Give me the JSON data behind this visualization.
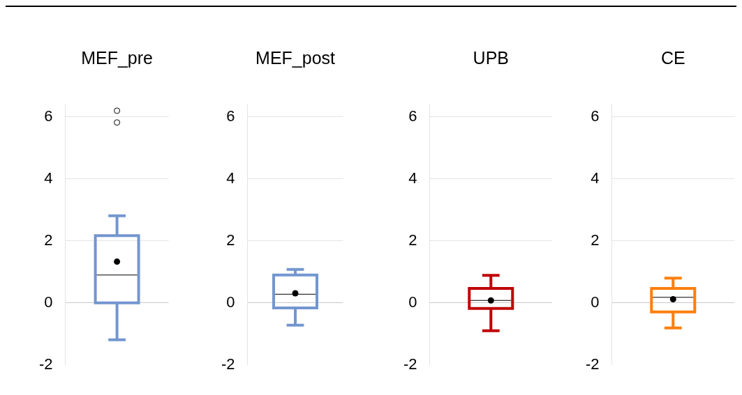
{
  "chart_data": [
    {
      "type": "box",
      "categories": [
        "MEF_pre"
      ],
      "color": "#7396cf",
      "ylim": [
        -2,
        6.4
      ],
      "yticks": [
        -2,
        0,
        2,
        4,
        6
      ],
      "grid": "y",
      "legend": false,
      "boxes": [
        {
          "low": -1.19,
          "q1": 0,
          "median": 0.9,
          "q3": 2.17,
          "high": 2.81,
          "mean": 1.33,
          "outliers": [
            6.2,
            5.82
          ]
        }
      ]
    },
    {
      "type": "box",
      "categories": [
        "MEF_post"
      ],
      "color": "#7396cf",
      "ylim": [
        -2,
        6.4
      ],
      "yticks": [
        -2,
        0,
        2,
        4,
        6
      ],
      "grid": "y",
      "legend": false,
      "boxes": [
        {
          "low": -0.72,
          "q1": -0.16,
          "median": 0.28,
          "q3": 0.9,
          "high": 1.08,
          "mean": 0.31
        }
      ]
    },
    {
      "type": "box",
      "categories": [
        "UPB"
      ],
      "color": "#c00000",
      "ylim": [
        -2,
        6.4
      ],
      "yticks": [
        -2,
        0,
        2,
        4,
        6
      ],
      "grid": "y",
      "legend": false,
      "boxes": [
        {
          "low": -0.9,
          "q1": -0.18,
          "median": 0.08,
          "q3": 0.47,
          "high": 0.89,
          "mean": 0.08
        }
      ]
    },
    {
      "type": "box",
      "categories": [
        "CE"
      ],
      "color": "#ff7f0e",
      "ylim": [
        -2,
        6.4
      ],
      "yticks": [
        -2,
        0,
        2,
        4,
        6
      ],
      "grid": "y",
      "legend": false,
      "boxes": [
        {
          "low": -0.81,
          "q1": -0.29,
          "median": 0.18,
          "q3": 0.47,
          "high": 0.8,
          "mean": 0.12
        }
      ]
    }
  ]
}
